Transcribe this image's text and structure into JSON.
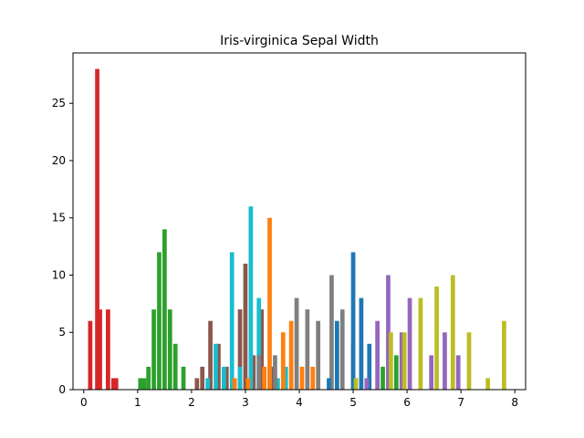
{
  "chart_data": {
    "type": "bar",
    "title": "Iris-virginica Sepal Width",
    "xlabel": "",
    "ylabel": "",
    "xlim": [
      -0.2,
      8.2
    ],
    "ylim": [
      0,
      29.4
    ],
    "x_ticks": [
      0,
      1,
      2,
      3,
      4,
      5,
      6,
      7,
      8
    ],
    "y_ticks": [
      0,
      5,
      10,
      15,
      20,
      25
    ],
    "grid": false,
    "legend": "none",
    "series": [
      {
        "color": "#d62728",
        "points": [
          [
            0.12,
            6
          ],
          [
            0.25,
            28
          ],
          [
            0.3,
            7
          ],
          [
            0.45,
            7
          ],
          [
            0.55,
            1
          ],
          [
            0.6,
            1
          ]
        ]
      },
      {
        "color": "#2ca02c",
        "points": [
          [
            1.05,
            1
          ],
          [
            1.12,
            1
          ],
          [
            1.2,
            2
          ],
          [
            1.3,
            7
          ],
          [
            1.4,
            12
          ],
          [
            1.5,
            14
          ],
          [
            1.6,
            7
          ],
          [
            1.7,
            4
          ],
          [
            1.85,
            2
          ]
        ]
      },
      {
        "color": "#8c564b",
        "points": [
          [
            2.1,
            1
          ],
          [
            2.2,
            2
          ],
          [
            2.35,
            6
          ],
          [
            2.5,
            4
          ],
          [
            2.65,
            2
          ],
          [
            2.9,
            7
          ],
          [
            3.0,
            11
          ],
          [
            3.15,
            3
          ],
          [
            3.3,
            7
          ],
          [
            3.5,
            2
          ]
        ]
      },
      {
        "color": "#17becf",
        "points": [
          [
            2.3,
            1
          ],
          [
            2.45,
            4
          ],
          [
            2.6,
            2
          ],
          [
            2.75,
            12
          ],
          [
            2.9,
            2
          ],
          [
            3.1,
            16
          ],
          [
            3.25,
            8
          ],
          [
            3.45,
            2
          ],
          [
            3.6,
            1
          ],
          [
            3.75,
            2
          ]
        ]
      },
      {
        "color": "#ff7f0e",
        "points": [
          [
            2.8,
            1
          ],
          [
            3.05,
            1
          ],
          [
            3.35,
            2
          ],
          [
            3.45,
            15
          ],
          [
            3.7,
            5
          ],
          [
            3.85,
            6
          ],
          [
            4.05,
            2
          ],
          [
            4.25,
            2
          ]
        ]
      },
      {
        "color": "#7f7f7f",
        "points": [
          [
            3.25,
            3
          ],
          [
            3.55,
            3
          ],
          [
            3.95,
            8
          ],
          [
            4.15,
            7
          ],
          [
            4.35,
            6
          ],
          [
            4.6,
            10
          ],
          [
            4.8,
            7
          ],
          [
            5.0,
            4
          ]
        ]
      },
      {
        "color": "#1f77b4",
        "points": [
          [
            4.55,
            1
          ],
          [
            4.7,
            6
          ],
          [
            5.0,
            12
          ],
          [
            5.15,
            8
          ],
          [
            5.3,
            4
          ]
        ]
      },
      {
        "color": "#9467bd",
        "points": [
          [
            5.25,
            1
          ],
          [
            5.45,
            6
          ],
          [
            5.65,
            10
          ],
          [
            5.9,
            5
          ],
          [
            6.05,
            8
          ],
          [
            6.45,
            3
          ],
          [
            6.7,
            5
          ],
          [
            6.95,
            3
          ]
        ]
      },
      {
        "color": "#bcbd22",
        "points": [
          [
            5.05,
            1
          ],
          [
            5.7,
            5
          ],
          [
            5.95,
            5
          ],
          [
            6.25,
            8
          ],
          [
            6.55,
            9
          ],
          [
            6.85,
            10
          ],
          [
            7.15,
            5
          ],
          [
            7.5,
            1
          ],
          [
            7.8,
            6
          ]
        ]
      },
      {
        "color": "#2ca02c",
        "points": [
          [
            5.55,
            2
          ],
          [
            5.8,
            3
          ]
        ]
      }
    ]
  }
}
